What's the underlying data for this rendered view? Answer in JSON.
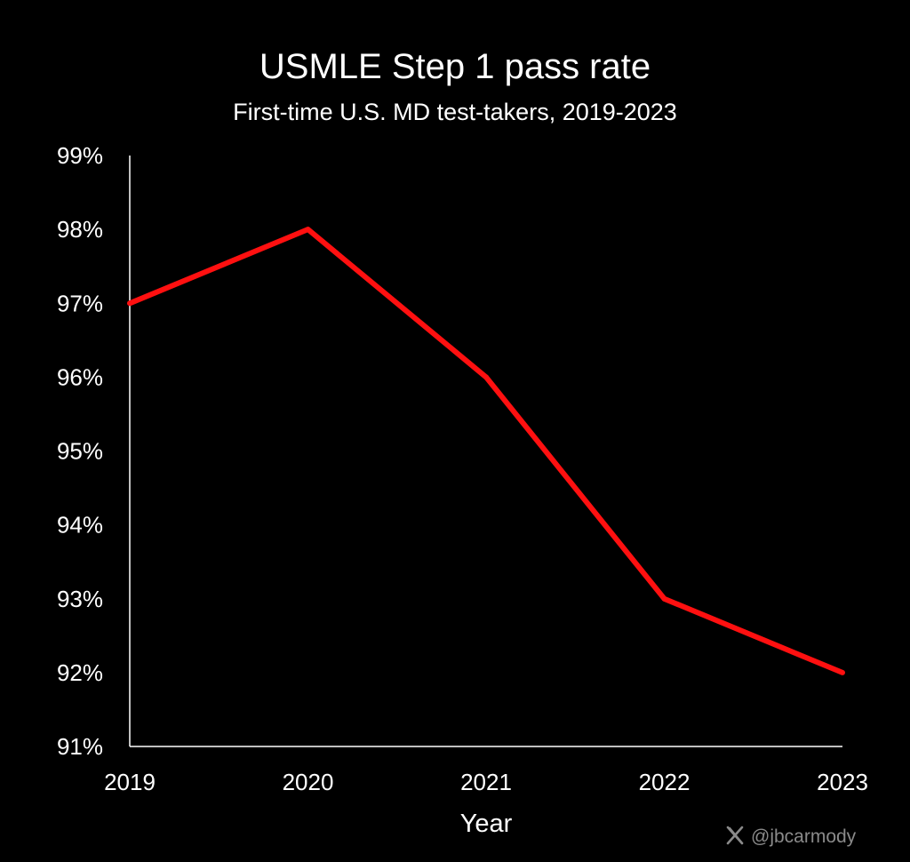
{
  "chart_data": {
    "type": "line",
    "title": "USMLE Step 1 pass rate",
    "subtitle": "First-time U.S. MD test-takers, 2019-2023",
    "xlabel": "Year",
    "ylabel": "",
    "x": [
      "2019",
      "2020",
      "2021",
      "2022",
      "2023"
    ],
    "series": [
      {
        "values": [
          97,
          98,
          96,
          93,
          92
        ]
      }
    ],
    "ylim": [
      91,
      99
    ],
    "yticks": [
      91,
      92,
      93,
      94,
      95,
      96,
      97,
      98,
      99
    ],
    "ytick_labels": [
      "91%",
      "92%",
      "93%",
      "94%",
      "95%",
      "96%",
      "97%",
      "98%",
      "99%"
    ],
    "grid": false,
    "legend": "none"
  },
  "colors": {
    "background": "#000000",
    "line": "#ff1010",
    "axis": "#ffffff",
    "watermark": "#8a8a8a"
  },
  "watermark": {
    "icon": "x-logo-icon",
    "handle": "@jbcarmody"
  }
}
